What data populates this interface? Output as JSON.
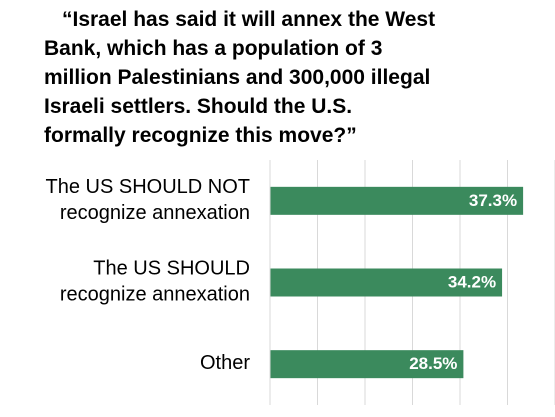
{
  "chart_data": {
    "type": "hbar",
    "title": "“Israel has said it will annex the West\nBank, which has a population of 3\nmillion Palestinians and 300,000 illegal\nIsraeli settlers. Should the U.S.\nformally recognize this move?”",
    "categories": [
      "The US SHOULD NOT\nrecognize annexation",
      "The US SHOULD\nrecognize annexation",
      "Other"
    ],
    "values": [
      37.3,
      34.2,
      28.5
    ],
    "value_labels": [
      "37.3%",
      "34.2%",
      "28.5%"
    ],
    "color": "#3b8a5d",
    "xlim": [
      0,
      42
    ],
    "xticks": [
      0,
      7,
      14,
      21,
      28,
      35,
      42
    ],
    "grid": true
  }
}
